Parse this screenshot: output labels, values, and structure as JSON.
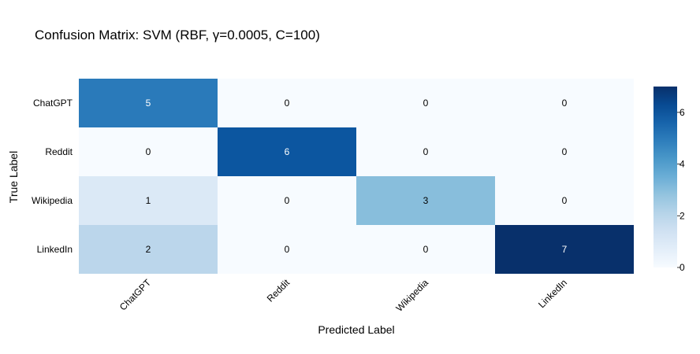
{
  "chart_data": {
    "type": "heatmap",
    "title": "Confusion Matrix: SVM (RBF, γ=0.0005, C=100)",
    "xlabel": "Predicted Label",
    "ylabel": "True Label",
    "x_categories": [
      "ChatGPT",
      "Reddit",
      "Wikipedia",
      "LinkedIn"
    ],
    "y_categories": [
      "ChatGPT",
      "Reddit",
      "Wikipedia",
      "LinkedIn"
    ],
    "values": [
      [
        5,
        0,
        0,
        0
      ],
      [
        0,
        6,
        0,
        0
      ],
      [
        1,
        0,
        3,
        0
      ],
      [
        2,
        0,
        0,
        7
      ]
    ],
    "colorscale": "Blues",
    "color_range": [
      0,
      7
    ],
    "colorbar_ticks": [
      "0",
      "2",
      "4",
      "6"
    ]
  }
}
